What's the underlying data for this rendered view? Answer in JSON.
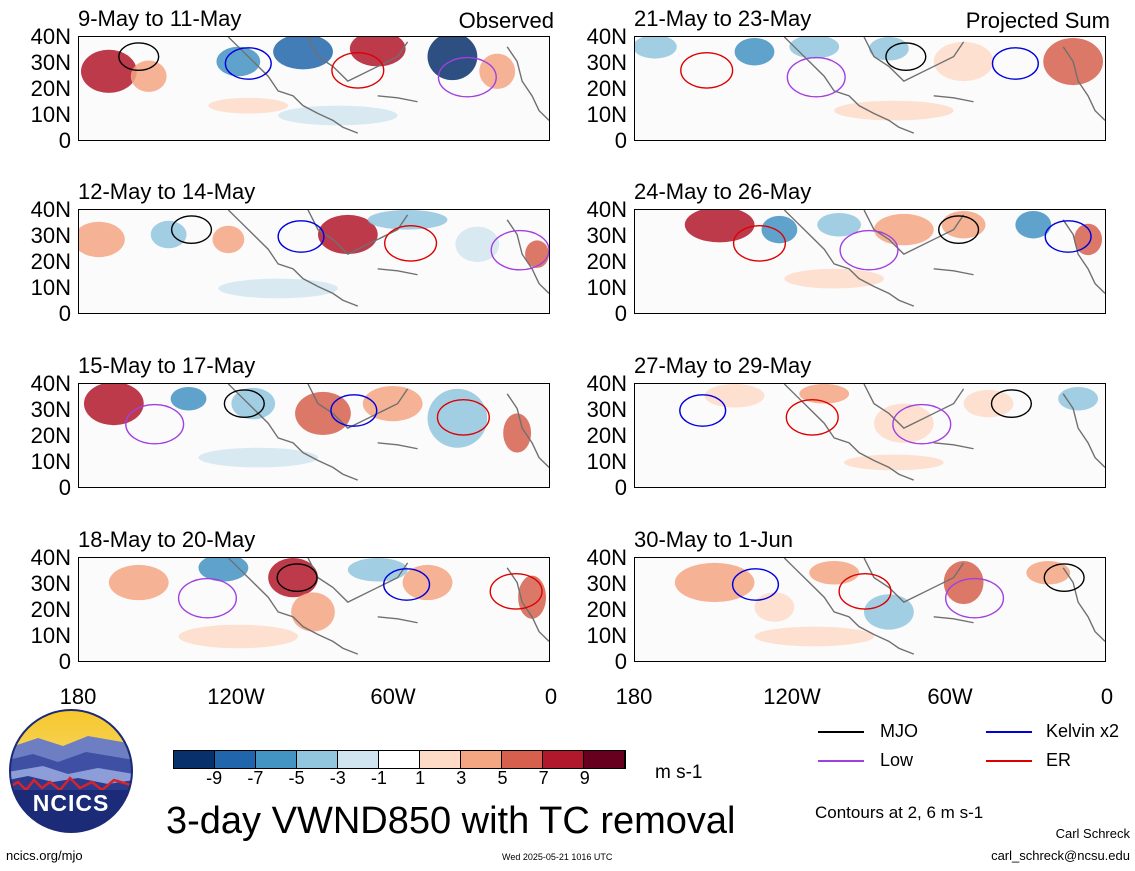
{
  "header": {
    "observed_label": "Observed",
    "projected_label": "Projected Sum"
  },
  "panels_left": [
    {
      "title": "9-May to 11-May"
    },
    {
      "title": "12-May to 14-May"
    },
    {
      "title": "15-May to 17-May"
    },
    {
      "title": "18-May to 20-May"
    }
  ],
  "panels_right": [
    {
      "title": "21-May to 23-May"
    },
    {
      "title": "24-May to 26-May"
    },
    {
      "title": "27-May to 29-May"
    },
    {
      "title": "30-May to 1-Jun"
    }
  ],
  "y_ticks": [
    "40N",
    "30N",
    "20N",
    "10N",
    "0"
  ],
  "x_ticks": [
    "180",
    "120W",
    "60W",
    "0"
  ],
  "colorbar": {
    "ticks": [
      "-9",
      "-7",
      "-5",
      "-3",
      "-1",
      "1",
      "3",
      "5",
      "7",
      "9"
    ],
    "units": "m s-1",
    "colors": [
      "#08306b",
      "#2166ac",
      "#4393c3",
      "#92c5de",
      "#d1e5f0",
      "#ffffff",
      "#fddbc7",
      "#f4a582",
      "#d6604d",
      "#b2182b",
      "#67001f"
    ]
  },
  "legend": {
    "items": [
      {
        "label": "MJO",
        "color": "#000000"
      },
      {
        "label": "Kelvin x2",
        "color": "#0000dd"
      },
      {
        "label": "Low",
        "color": "#a040e0"
      },
      {
        "label": "ER",
        "color": "#dd0000"
      }
    ],
    "contour_note": "Contours at 2, 6 m s-1"
  },
  "main_title": "3-day VWND850 with TC removal",
  "logo_text": "NCICS",
  "footer": {
    "left": "ncics.org/mjo",
    "timestamp": "Wed 2025-05-21 1016 UTC",
    "author": "Carl Schreck",
    "email": "carl_schreck@ncsu.edu"
  }
}
